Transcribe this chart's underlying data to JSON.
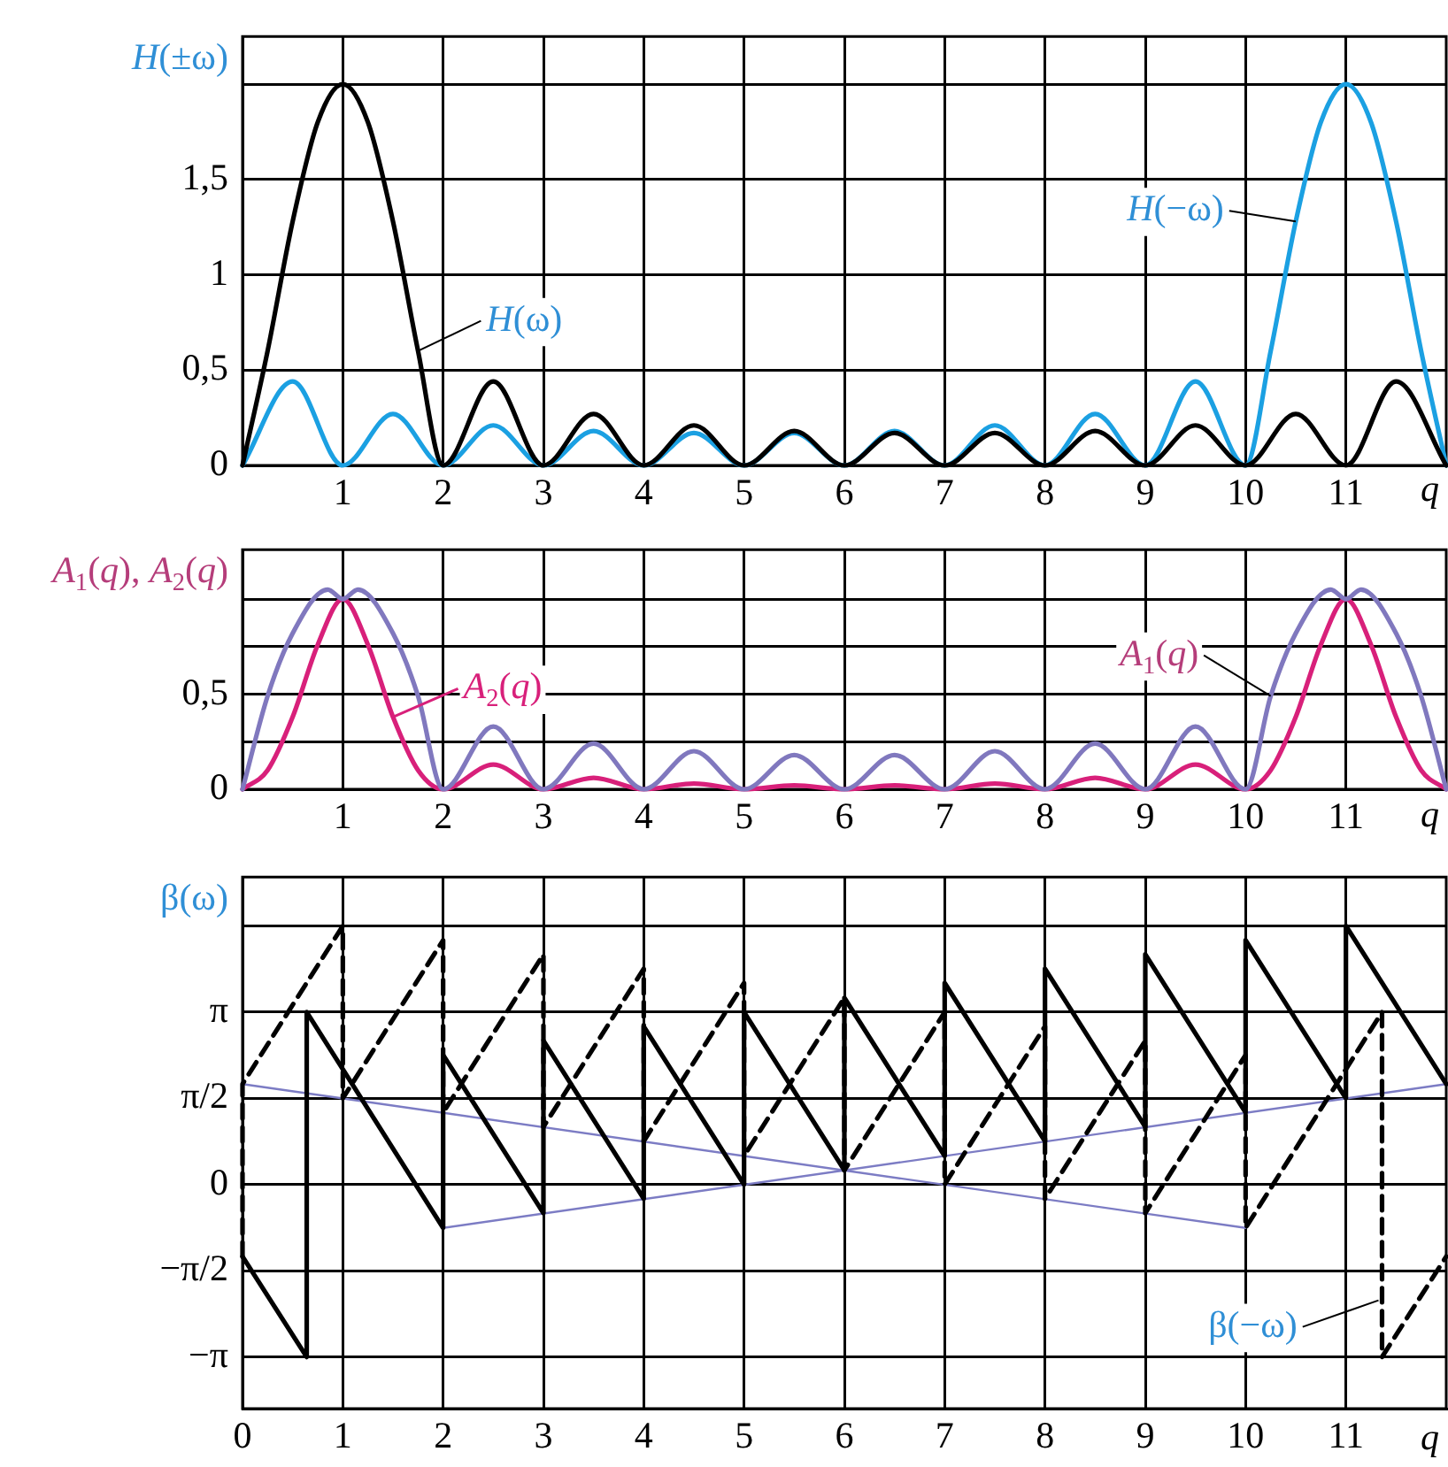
{
  "chart_data": [
    {
      "type": "line",
      "ylabel": "H(±ω)",
      "xlabel": "q",
      "xlim": [
        0,
        12
      ],
      "xticks": [
        1,
        2,
        3,
        4,
        5,
        6,
        7,
        8,
        9,
        10,
        11
      ],
      "ylim": [
        0,
        2.25
      ],
      "yticks": [
        {
          "value": 0,
          "label": "0"
        },
        {
          "value": 0.5,
          "label": "0,5"
        },
        1,
        {
          "value": 1.5,
          "label": "1,5"
        },
        {
          "value": 2,
          "label": null
        }
      ],
      "grid": true,
      "marker": "none",
      "series": [
        {
          "name": "H(ω)",
          "color": "#000000",
          "x": [
            0,
            0.25,
            0.5,
            0.75,
            1,
            1.25,
            1.5,
            1.75,
            2,
            2.5,
            3,
            3.5,
            4,
            4.5,
            5,
            5.5,
            6,
            6.5,
            7,
            7.5,
            8,
            8.5,
            9,
            9.5,
            10,
            10.5,
            11,
            11.5,
            12
          ],
          "values": [
            0,
            0.6,
            1.28,
            1.8,
            2,
            1.8,
            1.28,
            0.6,
            0,
            0.44,
            0,
            0.27,
            0,
            0.21,
            0,
            0.18,
            0,
            0.17,
            0,
            0.17,
            0,
            0.18,
            0,
            0.21,
            0,
            0.27,
            0,
            0.44,
            0
          ]
        },
        {
          "name": "H(−ω)",
          "color": "#1ba0e2",
          "x": [
            0,
            0.5,
            1,
            1.5,
            2,
            2.5,
            3,
            3.5,
            4,
            4.5,
            5,
            5.5,
            6,
            6.5,
            7,
            7.5,
            8,
            8.5,
            9,
            9.5,
            10,
            10.25,
            10.5,
            10.75,
            11,
            11.25,
            11.5,
            11.75,
            12
          ],
          "values": [
            0,
            0.44,
            0,
            0.27,
            0,
            0.21,
            0,
            0.18,
            0,
            0.17,
            0,
            0.17,
            0,
            0.18,
            0,
            0.21,
            0,
            0.27,
            0,
            0.44,
            0,
            0.6,
            1.28,
            1.8,
            2,
            1.8,
            1.28,
            0.6,
            0
          ]
        }
      ]
    },
    {
      "type": "line",
      "ylabel": "A$_{1}$(q), A$_{2}$(q)",
      "xlabel": "q",
      "xlim": [
        0,
        12
      ],
      "xticks": [
        1,
        2,
        3,
        4,
        5,
        6,
        7,
        8,
        9,
        10,
        11
      ],
      "ylim": [
        0,
        1.26
      ],
      "yticks": [
        {
          "value": 0,
          "label": "0"
        },
        {
          "value": 0.25,
          "label": null
        },
        {
          "value": 0.5,
          "label": "0,5"
        },
        {
          "value": 0.75,
          "label": null
        },
        {
          "value": 1,
          "label": null
        }
      ],
      "grid": true,
      "marker": "none",
      "series": [
        {
          "name": "A$_{1}$(q)",
          "color": "#8078be",
          "x": [
            0,
            0.25,
            0.5,
            0.85,
            1,
            1.15,
            1.5,
            1.75,
            2,
            2.5,
            3,
            3.5,
            4,
            4.5,
            5,
            5.5,
            6,
            6.5,
            7,
            7.5,
            8,
            8.5,
            9,
            9.5,
            10,
            10.25,
            10.5,
            10.85,
            11,
            11.15,
            11.5,
            11.75,
            12
          ],
          "values": [
            0,
            0.49,
            0.82,
            1.05,
            1,
            1.05,
            0.82,
            0.49,
            0,
            0.33,
            0,
            0.24,
            0,
            0.2,
            0,
            0.18,
            0,
            0.18,
            0,
            0.2,
            0,
            0.24,
            0,
            0.33,
            0,
            0.49,
            0.82,
            1.05,
            1,
            1.05,
            0.82,
            0.49,
            0
          ]
        },
        {
          "name": "A$_{2}$(q)",
          "color": "#d8207a",
          "x": [
            0,
            0.25,
            0.5,
            0.75,
            1,
            1.25,
            1.5,
            1.75,
            2,
            2.5,
            3,
            3.5,
            4,
            4.5,
            5,
            5.5,
            6,
            6.5,
            7,
            7.5,
            8,
            8.5,
            9,
            9.5,
            10,
            10.25,
            10.5,
            10.75,
            11,
            11.25,
            11.5,
            11.75,
            12
          ],
          "values": [
            0,
            0.1,
            0.38,
            0.76,
            1,
            0.76,
            0.38,
            0.1,
            0,
            0.13,
            0,
            0.06,
            0,
            0.03,
            0,
            0.02,
            0,
            0.02,
            0,
            0.03,
            0,
            0.06,
            0,
            0.13,
            0,
            0.1,
            0.38,
            0.76,
            1,
            0.76,
            0.38,
            0.1,
            0
          ]
        }
      ]
    },
    {
      "type": "line",
      "ylabel": "β(ω)",
      "xlabel": "q",
      "xlim": [
        0,
        12
      ],
      "xticks": [
        {
          "value": 0,
          "label": "0"
        },
        1,
        2,
        3,
        4,
        5,
        6,
        7,
        8,
        9,
        10,
        11
      ],
      "ylim": [
        -4.08,
        5.6
      ],
      "yticks": [
        {
          "value": -3.1416,
          "label": "−π"
        },
        {
          "value": -1.5708,
          "label": "−π/2"
        },
        {
          "value": 0,
          "label": "0"
        },
        {
          "value": 1.5708,
          "label": "π/2"
        },
        {
          "value": 3.1416,
          "label": "π"
        },
        {
          "value": 4.7124,
          "label": null
        }
      ],
      "grid": true,
      "marker": "none",
      "series": [
        {
          "color": "#000000",
          "x": [
            0,
            0.64,
            0.64,
            2,
            2,
            3,
            3,
            4,
            4,
            5,
            5,
            6,
            6,
            7,
            7,
            8,
            8,
            9,
            9,
            10,
            10,
            11,
            11,
            12
          ],
          "values": [
            -1.31,
            -3.14,
            3.14,
            -0.79,
            2.36,
            -0.52,
            2.62,
            -0.26,
            2.88,
            0,
            3.14,
            0.26,
            3.4,
            0.52,
            3.67,
            0.79,
            3.93,
            1.05,
            4.19,
            1.31,
            4.45,
            1.57,
            4.71,
            1.83
          ]
        },
        {
          "name": "β(−ω)",
          "color": "#000000",
          "line_style": "dashed",
          "x": [
            0,
            0,
            1,
            1,
            2,
            2,
            3,
            3,
            4,
            4,
            5,
            5,
            6,
            6,
            7,
            7,
            8,
            8,
            9,
            9,
            10,
            10,
            11.36,
            11.36,
            12
          ],
          "values": [
            -1.31,
            1.83,
            4.71,
            1.57,
            4.45,
            1.31,
            4.19,
            1.05,
            3.93,
            0.79,
            3.67,
            0.52,
            3.4,
            0.26,
            3.14,
            0,
            2.88,
            -0.26,
            2.62,
            -0.52,
            2.36,
            -0.79,
            3.14,
            -3.14,
            -1.31
          ]
        },
        {
          "color": "#7c7cc4",
          "x": [
            0,
            10
          ],
          "values": [
            1.83,
            -0.79
          ]
        },
        {
          "color": "#7c7cc4",
          "x": [
            2,
            12
          ],
          "values": [
            -0.79,
            1.83
          ]
        }
      ]
    }
  ]
}
